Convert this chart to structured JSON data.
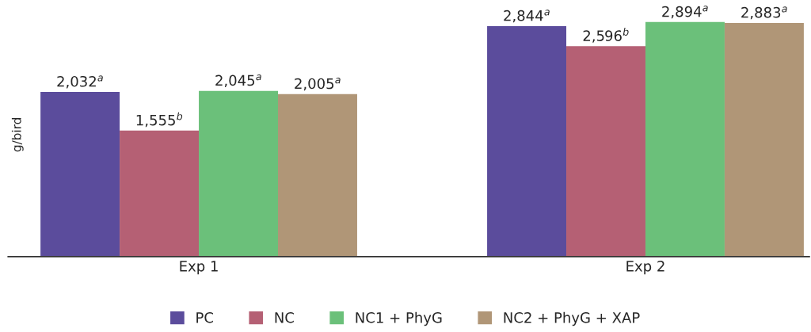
{
  "chart_data": {
    "type": "bar",
    "ylabel": "g/bird",
    "categories": [
      "Exp 1",
      "Exp 2"
    ],
    "tick_labels": "x",
    "legend": "bottom",
    "series": [
      {
        "name": "PC",
        "color": "#5b4c9c",
        "values": [
          2032,
          2844
        ],
        "value_labels": [
          "2,032$^{a}$",
          "2,844$^{a}$"
        ]
      },
      {
        "name": "NC",
        "color": "#b56074",
        "values": [
          1555,
          2596
        ],
        "value_labels": [
          "1,555$^{b}$",
          "2,596$^{b}$"
        ]
      },
      {
        "name": "NC1 + PhyG",
        "color": "#6bc07a",
        "values": [
          2045,
          2894
        ],
        "value_labels": [
          "2,045$^{a}$",
          "2,894$^{a}$"
        ]
      },
      {
        "name": "NC2 + PhyG + XAP",
        "color": "#b09677",
        "values": [
          2005,
          2883
        ],
        "value_labels": [
          "2,005$^{a}$",
          "2,883$^{a}$"
        ]
      }
    ]
  }
}
